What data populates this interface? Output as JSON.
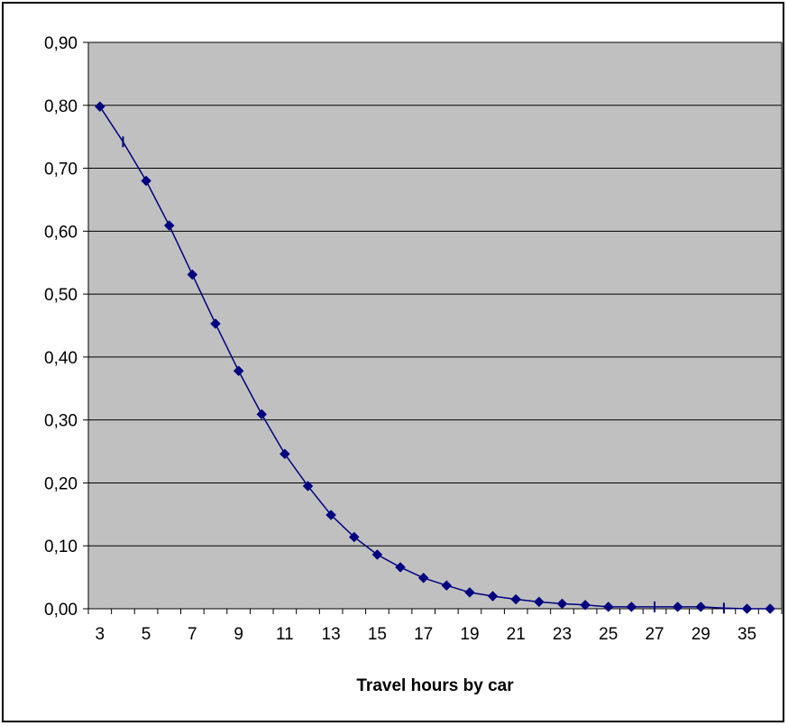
{
  "chart_data": {
    "type": "line",
    "title": "",
    "xlabel": "Travel hours by car",
    "ylabel": "",
    "categories": [
      "3",
      "4",
      "5",
      "6",
      "7",
      "8",
      "9",
      "10",
      "11",
      "12",
      "13",
      "14",
      "15",
      "16",
      "17",
      "18",
      "19",
      "20",
      "21",
      "22",
      "23",
      "24",
      "25",
      "26",
      "27",
      "28",
      "29",
      "30",
      "35",
      "36"
    ],
    "x_tick_labels": [
      "3",
      "5",
      "7",
      "9",
      "11",
      "13",
      "15",
      "17",
      "19",
      "21",
      "23",
      "25",
      "27",
      "29",
      "35"
    ],
    "y_tick_labels": [
      "0,00",
      "0,10",
      "0,20",
      "0,30",
      "0,40",
      "0,50",
      "0,60",
      "0,70",
      "0,80",
      "0,90"
    ],
    "ylim": [
      0,
      0.9
    ],
    "grid": true,
    "legend": "none",
    "series": [
      {
        "values": [
          0.798,
          0.742,
          0.68,
          0.609,
          0.531,
          0.453,
          0.378,
          0.309,
          0.246,
          0.195,
          0.149,
          0.114,
          0.086,
          0.066,
          0.049,
          0.037,
          0.026,
          0.02,
          0.015,
          0.011,
          0.008,
          0.006,
          0.003,
          0.003,
          0.003,
          0.003,
          0.003,
          0.001,
          0.0,
          0.0
        ],
        "markers": [
          "diamond",
          "dash",
          "diamond",
          "diamond",
          "diamond",
          "diamond",
          "diamond",
          "diamond",
          "diamond",
          "diamond",
          "diamond",
          "diamond",
          "diamond",
          "diamond",
          "diamond",
          "diamond",
          "diamond",
          "diamond",
          "diamond",
          "diamond",
          "diamond",
          "diamond",
          "diamond",
          "diamond",
          "dash",
          "diamond",
          "diamond",
          "dash",
          "diamond",
          "diamond"
        ],
        "color": "#000080"
      }
    ],
    "colors": {
      "plot_area": "#c0c0c0",
      "grid": "#000000",
      "series": "#000080"
    }
  }
}
